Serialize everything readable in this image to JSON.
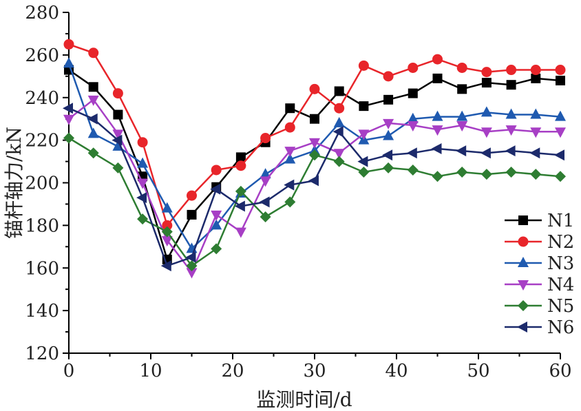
{
  "chart_data": {
    "type": "line",
    "xlabel": "监测时间/d",
    "ylabel": "锚杆轴力/kN",
    "xlim": [
      0,
      60
    ],
    "ylim": [
      120,
      280
    ],
    "xticks": [
      0,
      10,
      20,
      30,
      40,
      50,
      60
    ],
    "yticks": [
      120,
      140,
      160,
      180,
      200,
      220,
      240,
      260,
      280
    ],
    "grid": false,
    "legend_position": "bottom-right",
    "x": [
      0,
      3,
      6,
      9,
      12,
      15,
      18,
      21,
      24,
      27,
      30,
      33,
      36,
      39,
      42,
      45,
      48,
      51,
      54,
      57,
      60
    ],
    "series": [
      {
        "name": "N1",
        "color": "#000000",
        "marker": "square",
        "values": [
          253,
          245,
          232,
          203,
          164,
          185,
          198,
          212,
          219,
          235,
          230,
          243,
          236,
          239,
          242,
          249,
          244,
          247,
          246,
          249,
          248
        ]
      },
      {
        "name": "N2",
        "color": "#e8252a",
        "marker": "circle",
        "values": [
          265,
          261,
          242,
          219,
          180,
          194,
          206,
          208,
          221,
          226,
          244,
          235,
          255,
          250,
          254,
          258,
          254,
          252,
          253,
          253,
          253
        ]
      },
      {
        "name": "N3",
        "color": "#1f5ab0",
        "marker": "triangle-up",
        "values": [
          256,
          223,
          217,
          209,
          188,
          169,
          180,
          195,
          204,
          211,
          215,
          228,
          220,
          222,
          230,
          231,
          231,
          233,
          232,
          232,
          231
        ]
      },
      {
        "name": "N4",
        "color": "#a73fc5",
        "marker": "triangle-down",
        "values": [
          230,
          239,
          223,
          200,
          173,
          158,
          185,
          177,
          201,
          215,
          219,
          214,
          223,
          228,
          227,
          225,
          227,
          224,
          225,
          224,
          224
        ]
      },
      {
        "name": "N5",
        "color": "#2e7d32",
        "marker": "diamond",
        "values": [
          221,
          214,
          207,
          183,
          177,
          161,
          169,
          196,
          184,
          191,
          213,
          210,
          205,
          207,
          206,
          203,
          205,
          204,
          205,
          204,
          203
        ]
      },
      {
        "name": "N6",
        "color": "#1c2a6b",
        "marker": "triangle-left",
        "values": [
          235,
          230,
          220,
          193,
          161,
          165,
          197,
          189,
          191,
          199,
          201,
          224,
          210,
          213,
          214,
          216,
          215,
          214,
          215,
          214,
          213
        ]
      }
    ]
  }
}
